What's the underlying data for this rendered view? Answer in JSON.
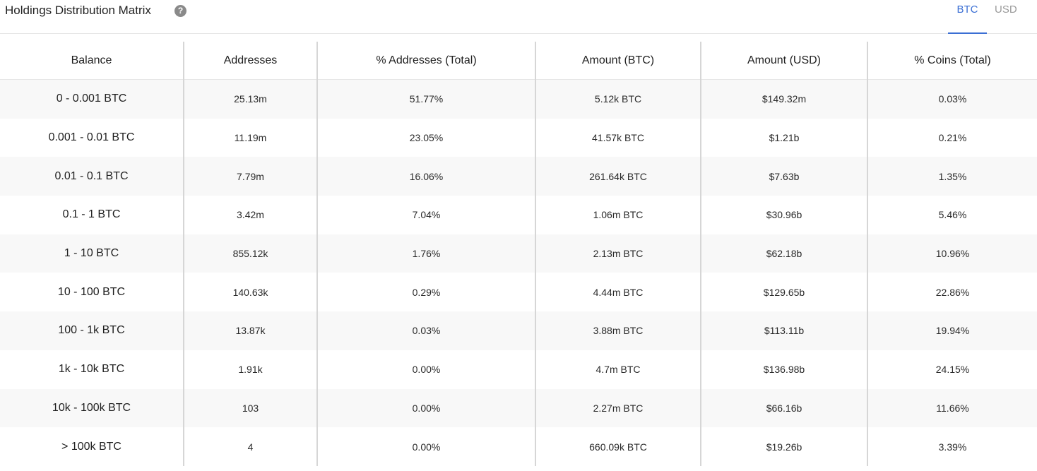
{
  "header": {
    "title": "Holdings Distribution Matrix",
    "help_icon": "?",
    "tabs": [
      {
        "label": "BTC",
        "active": true
      },
      {
        "label": "USD",
        "active": false
      }
    ]
  },
  "colors": {
    "accent": "#3b6fd4",
    "inactive_tab": "#9a9a9a",
    "stripe": "#f8f8f8"
  },
  "table": {
    "columns": [
      "Balance",
      "Addresses",
      "% Addresses (Total)",
      "Amount (BTC)",
      "Amount (USD)",
      "% Coins (Total)"
    ],
    "rows": [
      [
        "0 - 0.001 BTC",
        "25.13m",
        "51.77%",
        "5.12k BTC",
        "$149.32m",
        "0.03%"
      ],
      [
        "0.001 - 0.01 BTC",
        "11.19m",
        "23.05%",
        "41.57k BTC",
        "$1.21b",
        "0.21%"
      ],
      [
        "0.01 - 0.1 BTC",
        "7.79m",
        "16.06%",
        "261.64k BTC",
        "$7.63b",
        "1.35%"
      ],
      [
        "0.1 - 1 BTC",
        "3.42m",
        "7.04%",
        "1.06m BTC",
        "$30.96b",
        "5.46%"
      ],
      [
        "1 - 10 BTC",
        "855.12k",
        "1.76%",
        "2.13m BTC",
        "$62.18b",
        "10.96%"
      ],
      [
        "10 - 100 BTC",
        "140.63k",
        "0.29%",
        "4.44m BTC",
        "$129.65b",
        "22.86%"
      ],
      [
        "100 - 1k BTC",
        "13.87k",
        "0.03%",
        "3.88m BTC",
        "$113.11b",
        "19.94%"
      ],
      [
        "1k - 10k BTC",
        "1.91k",
        "0.00%",
        "4.7m BTC",
        "$136.98b",
        "24.15%"
      ],
      [
        "10k - 100k BTC",
        "103",
        "0.00%",
        "2.27m BTC",
        "$66.16b",
        "11.66%"
      ],
      [
        "> 100k BTC",
        "4",
        "0.00%",
        "660.09k BTC",
        "$19.26b",
        "3.39%"
      ]
    ]
  }
}
